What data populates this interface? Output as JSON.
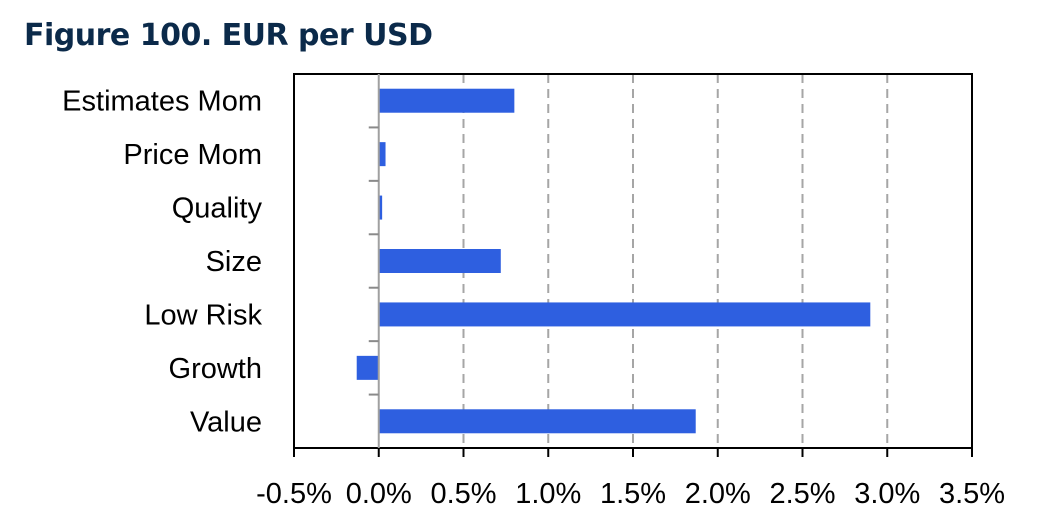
{
  "chart_data": {
    "type": "bar",
    "orientation": "horizontal",
    "title": "Figure 100. EUR per USD",
    "categories": [
      "Estimates Mom",
      "Price Mom",
      "Quality",
      "Size",
      "Low Risk",
      "Growth",
      "Value"
    ],
    "values": [
      0.8,
      0.04,
      0.02,
      0.72,
      2.9,
      -0.13,
      1.87
    ],
    "unit": "%",
    "xlim": [
      -0.5,
      3.5
    ],
    "x_ticks": [
      -0.5,
      0.0,
      0.5,
      1.0,
      1.5,
      2.0,
      2.5,
      3.0,
      3.5
    ],
    "x_tick_labels": [
      "-0.5%",
      "0.0%",
      "0.5%",
      "1.0%",
      "1.5%",
      "2.0%",
      "2.5%",
      "3.0%",
      "3.5%"
    ],
    "grid": "vertical dashed",
    "legend": "none",
    "colors": {
      "bar": "#2e5fe0",
      "title": "#0b2a4a",
      "grid": "#a6a6a6",
      "frame": "#000000"
    }
  }
}
